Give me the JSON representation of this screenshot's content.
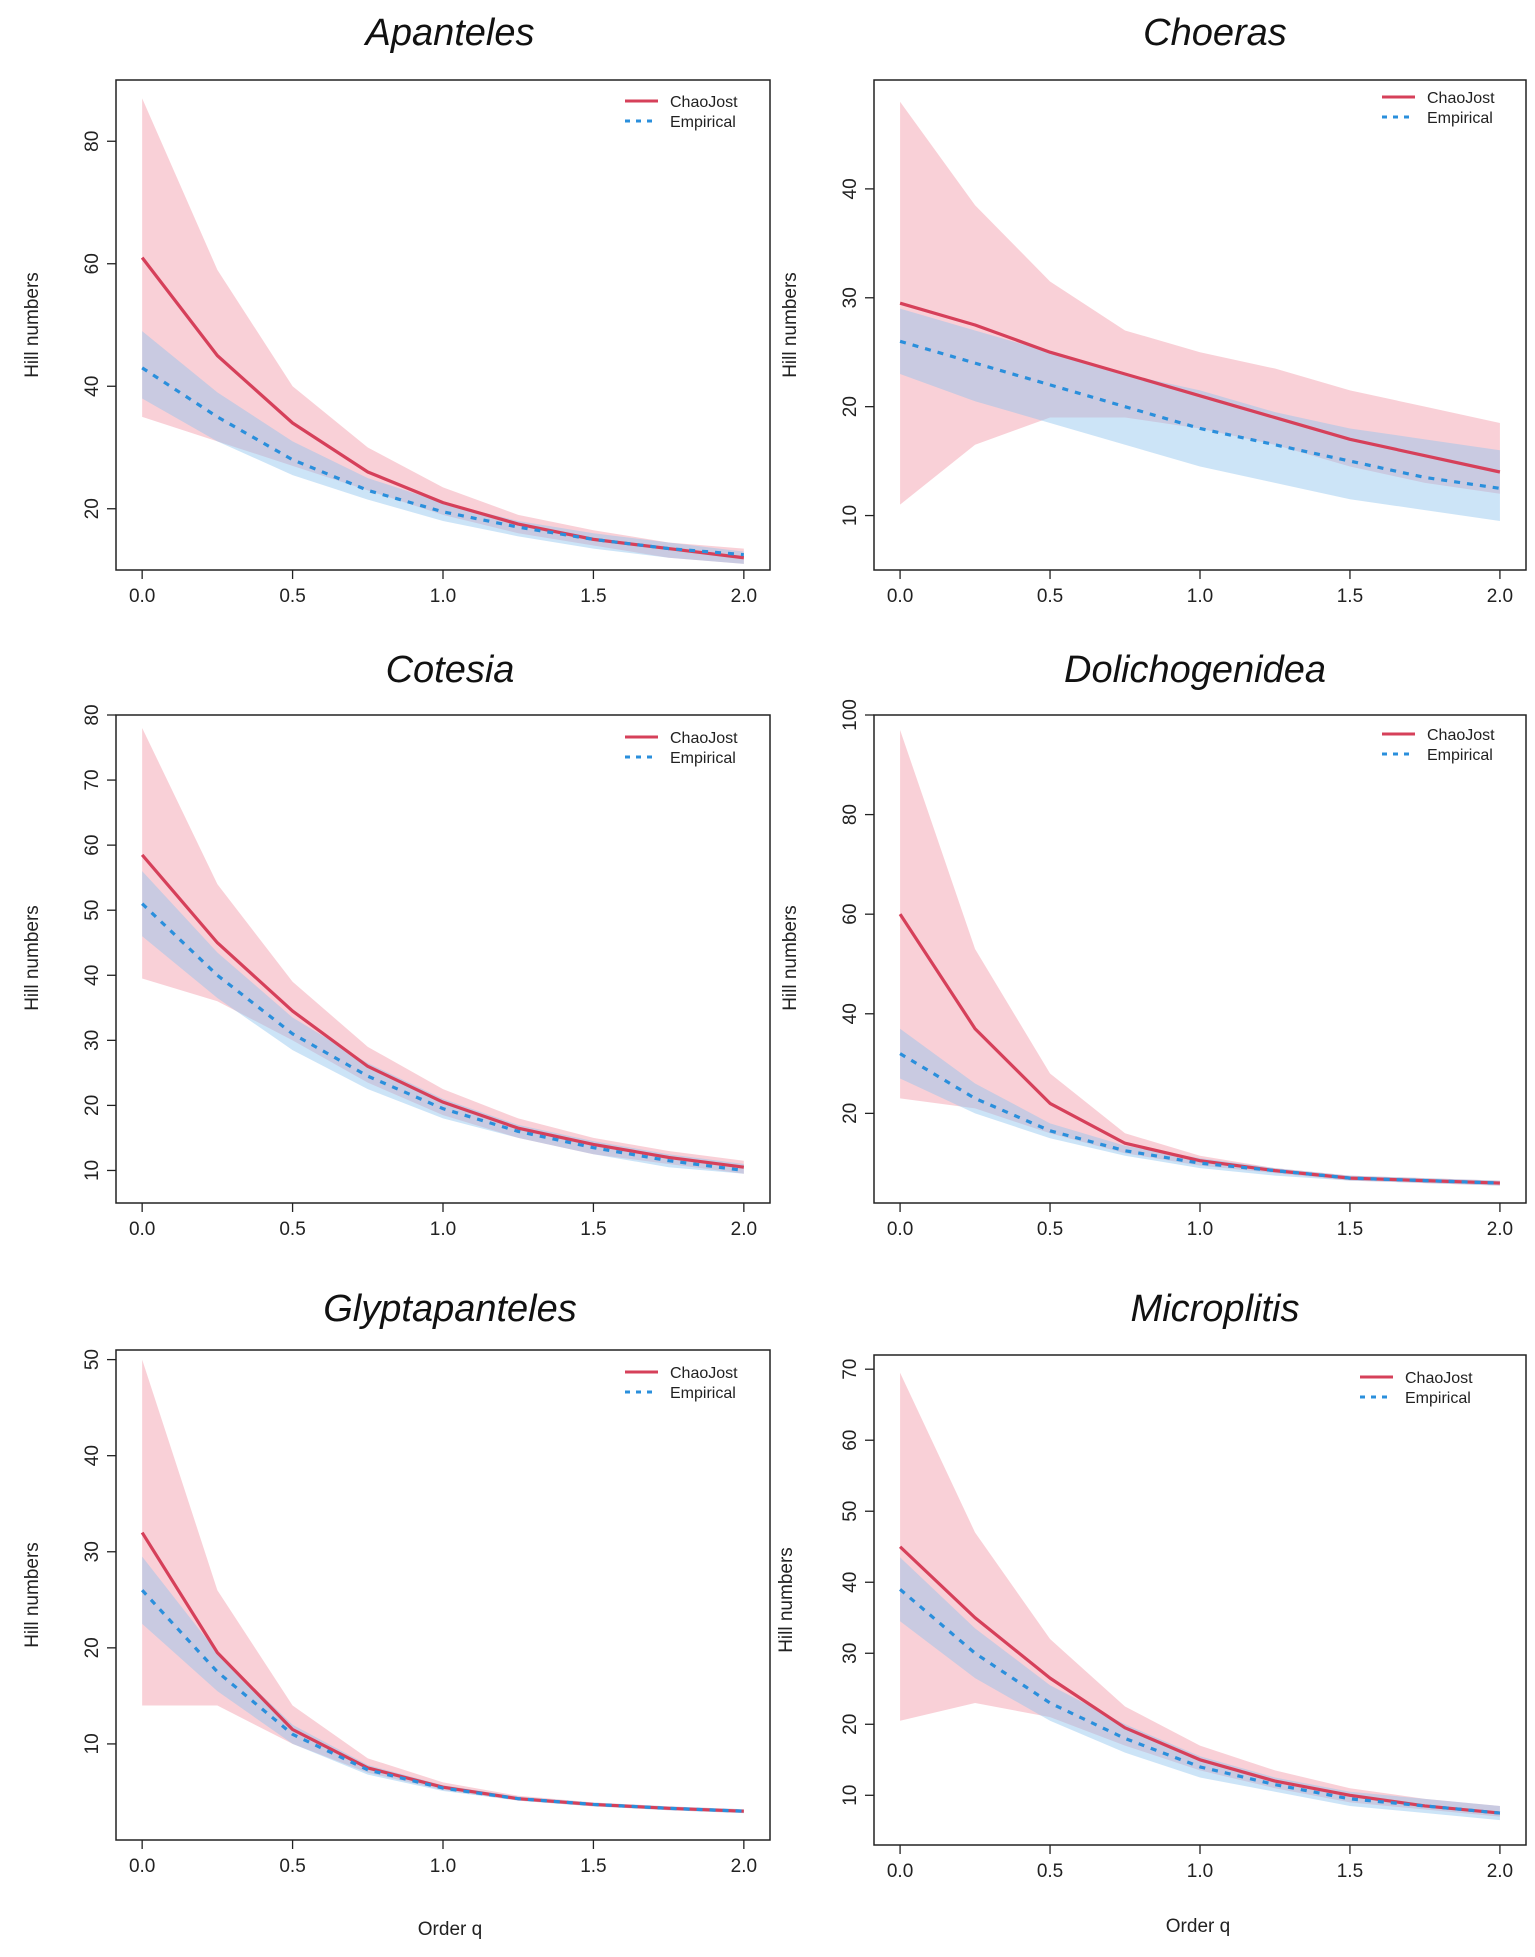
{
  "colors": {
    "chaojost": "#d6405a",
    "empirical": "#2a8fdc",
    "chaojost_band": "#f4a9b6",
    "empirical_band": "#8fc4ee"
  },
  "chart_data": [
    {
      "type": "line",
      "title": "Apanteles",
      "xlabel": "",
      "ylabel": "Hill numbers",
      "xlim": [
        0,
        2
      ],
      "ylim": [
        10,
        90
      ],
      "xticks": [
        "0.0",
        "0.5",
        "1.0",
        "1.5",
        "2.0"
      ],
      "yticks": [
        "20",
        "40",
        "60",
        "80"
      ],
      "legend": [
        "ChaoJost",
        "Empirical"
      ],
      "x": [
        0,
        0.25,
        0.5,
        0.75,
        1.0,
        1.25,
        1.5,
        1.75,
        2.0
      ],
      "series": [
        {
          "name": "ChaoJost",
          "values": [
            61,
            45,
            34,
            26,
            21,
            17.5,
            15,
            13.5,
            12
          ],
          "lower": [
            35,
            31,
            27,
            23,
            19,
            16,
            14,
            12,
            11
          ],
          "upper": [
            87,
            59,
            40,
            30,
            23.5,
            19,
            16.5,
            14.5,
            13.5
          ]
        },
        {
          "name": "Empirical",
          "values": [
            43,
            35,
            28,
            23,
            19.5,
            17,
            15,
            13.5,
            12.5
          ],
          "lower": [
            38,
            31,
            25.5,
            21.5,
            18,
            15.5,
            13.5,
            12,
            11
          ],
          "upper": [
            49,
            39,
            31,
            25,
            21,
            18,
            16,
            14.5,
            13
          ]
        }
      ]
    },
    {
      "type": "line",
      "title": "Choeras",
      "xlabel": "",
      "ylabel": "Hill numbers",
      "xlim": [
        0,
        2
      ],
      "ylim": [
        5,
        50
      ],
      "xticks": [
        "0.0",
        "0.5",
        "1.0",
        "1.5",
        "2.0"
      ],
      "yticks": [
        "10",
        "20",
        "30",
        "40"
      ],
      "legend": [
        "ChaoJost",
        "Empirical"
      ],
      "x": [
        0,
        0.25,
        0.5,
        0.75,
        1.0,
        1.25,
        1.5,
        1.75,
        2.0
      ],
      "series": [
        {
          "name": "ChaoJost",
          "values": [
            29.5,
            27.5,
            25,
            23,
            21,
            19,
            17,
            15.5,
            14
          ],
          "lower": [
            11,
            16.5,
            19,
            19,
            18,
            16.5,
            14.5,
            13,
            12
          ],
          "upper": [
            48,
            38.5,
            31.5,
            27,
            25,
            23.5,
            21.5,
            20,
            18.5
          ]
        },
        {
          "name": "Empirical",
          "values": [
            26,
            24,
            22,
            20,
            18,
            16.5,
            15,
            13.5,
            12.5
          ],
          "lower": [
            23,
            20.5,
            18.5,
            16.5,
            14.5,
            13,
            11.5,
            10.5,
            9.5
          ],
          "upper": [
            29,
            27,
            25,
            23,
            21.5,
            19.5,
            18,
            17,
            16
          ]
        }
      ]
    },
    {
      "type": "line",
      "title": "Cotesia",
      "xlabel": "",
      "ylabel": "Hill numbers",
      "xlim": [
        0,
        2
      ],
      "ylim": [
        5,
        80
      ],
      "xticks": [
        "0.0",
        "0.5",
        "1.0",
        "1.5",
        "2.0"
      ],
      "yticks": [
        "10",
        "20",
        "30",
        "40",
        "50",
        "60",
        "70",
        "80"
      ],
      "legend": [
        "ChaoJost",
        "Empirical"
      ],
      "x": [
        0,
        0.25,
        0.5,
        0.75,
        1.0,
        1.25,
        1.5,
        1.75,
        2.0
      ],
      "series": [
        {
          "name": "ChaoJost",
          "values": [
            58.5,
            45,
            34.5,
            26,
            20.5,
            16.5,
            14,
            12,
            10.5
          ],
          "lower": [
            39.5,
            36,
            30,
            23.5,
            18.5,
            15,
            12.5,
            11,
            9.5
          ],
          "upper": [
            78,
            54,
            39,
            29,
            22.5,
            18,
            15,
            13,
            11.5
          ]
        },
        {
          "name": "Empirical",
          "values": [
            51,
            40,
            31,
            24.5,
            19.5,
            16,
            13.5,
            11.5,
            10
          ],
          "lower": [
            46,
            36.5,
            28.5,
            22.5,
            18,
            15,
            12.5,
            10.5,
            9.5
          ],
          "upper": [
            56,
            43.5,
            33.5,
            26.5,
            21,
            17,
            14.5,
            12.5,
            11
          ]
        }
      ]
    },
    {
      "type": "line",
      "title": "Dolichogenidea",
      "xlabel": "",
      "ylabel": "Hill numbers",
      "xlim": [
        0,
        2
      ],
      "ylim": [
        2,
        100
      ],
      "xticks": [
        "0.0",
        "0.5",
        "1.0",
        "1.5",
        "2.0"
      ],
      "yticks": [
        "20",
        "40",
        "60",
        "80",
        "100"
      ],
      "legend": [
        "ChaoJost",
        "Empirical"
      ],
      "x": [
        0,
        0.25,
        0.5,
        0.75,
        1.0,
        1.25,
        1.5,
        1.75,
        2.0
      ],
      "series": [
        {
          "name": "ChaoJost",
          "values": [
            60,
            37,
            22,
            14,
            10.5,
            8.5,
            7,
            6.5,
            6
          ],
          "lower": [
            23,
            21,
            16,
            12,
            9.5,
            8,
            6.5,
            6,
            5.5
          ],
          "upper": [
            97,
            53,
            28,
            16,
            11.5,
            9,
            7.5,
            7,
            6.5
          ]
        },
        {
          "name": "Empirical",
          "values": [
            32,
            23,
            16.5,
            12.5,
            10,
            8.5,
            7,
            6.5,
            6
          ],
          "lower": [
            27,
            20,
            15,
            11.5,
            9,
            7.5,
            6.5,
            6,
            5.5
          ],
          "upper": [
            37,
            26,
            18,
            13.5,
            11,
            9,
            7.5,
            7,
            6.5
          ]
        }
      ]
    },
    {
      "type": "line",
      "title": "Glyptapanteles",
      "xlabel": "Order  q",
      "ylabel": "Hill numbers",
      "xlim": [
        0,
        2
      ],
      "ylim": [
        0,
        51
      ],
      "xticks": [
        "0.0",
        "0.5",
        "1.0",
        "1.5",
        "2.0"
      ],
      "yticks": [
        "10",
        "20",
        "30",
        "40",
        "50"
      ],
      "legend": [
        "ChaoJost",
        "Empirical"
      ],
      "x": [
        0,
        0.25,
        0.5,
        0.75,
        1.0,
        1.25,
        1.5,
        1.75,
        2.0
      ],
      "series": [
        {
          "name": "ChaoJost",
          "values": [
            32,
            19.5,
            11.5,
            7.5,
            5.5,
            4.3,
            3.7,
            3.3,
            3
          ],
          "lower": [
            14,
            14,
            10,
            7,
            5.2,
            4.1,
            3.5,
            3.1,
            2.8
          ],
          "upper": [
            50,
            26,
            14,
            8.5,
            6,
            4.6,
            3.9,
            3.5,
            3.2
          ]
        },
        {
          "name": "Empirical",
          "values": [
            26,
            17.5,
            11,
            7.3,
            5.4,
            4.3,
            3.7,
            3.3,
            3
          ],
          "lower": [
            22.5,
            15.5,
            10,
            6.8,
            5.1,
            4.1,
            3.5,
            3.1,
            2.8
          ],
          "upper": [
            29.5,
            19.5,
            12,
            7.8,
            5.7,
            4.5,
            3.9,
            3.5,
            3.2
          ]
        }
      ]
    },
    {
      "type": "line",
      "title": "Microplitis",
      "xlabel": "Order  q",
      "ylabel": "Hill numbers",
      "xlim": [
        0,
        2
      ],
      "ylim": [
        3,
        72
      ],
      "xticks": [
        "0.0",
        "0.5",
        "1.0",
        "1.5",
        "2.0"
      ],
      "yticks": [
        "10",
        "20",
        "30",
        "40",
        "50",
        "60",
        "70"
      ],
      "legend": [
        "ChaoJost",
        "Empirical"
      ],
      "x": [
        0,
        0.25,
        0.5,
        0.75,
        1.0,
        1.25,
        1.5,
        1.75,
        2.0
      ],
      "series": [
        {
          "name": "ChaoJost",
          "values": [
            45,
            35,
            26.5,
            19.5,
            15,
            12,
            10,
            8.5,
            7.5
          ],
          "lower": [
            20.5,
            23,
            21,
            17,
            13.5,
            11,
            9,
            8,
            7
          ],
          "upper": [
            69.5,
            47,
            32,
            22.5,
            17,
            13.5,
            11,
            9.5,
            8.5
          ]
        },
        {
          "name": "Empirical",
          "values": [
            39,
            30,
            23,
            18,
            14,
            11.5,
            9.5,
            8.5,
            7.5
          ],
          "lower": [
            34.5,
            26.5,
            20.5,
            16,
            12.5,
            10.5,
            8.5,
            7.5,
            6.5
          ],
          "upper": [
            43.5,
            33.5,
            25.5,
            20,
            15.5,
            12.5,
            10.5,
            9.5,
            8.5
          ]
        }
      ]
    }
  ]
}
